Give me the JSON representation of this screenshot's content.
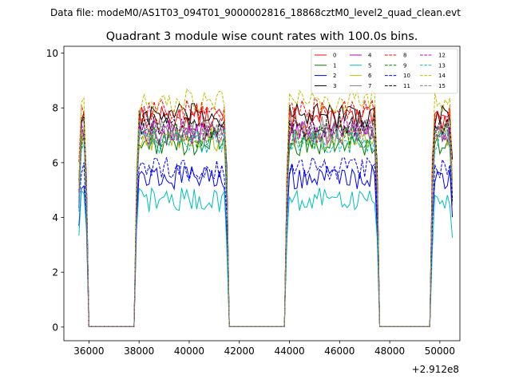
{
  "figure": {
    "suptitle": "Data file: modeM0/AS1T03_094T01_9000002816_18868cztM0_level2_quad_clean.evt"
  },
  "chart_data": {
    "type": "line",
    "title": "Quadrant 3 module wise count rates with 100.0s bins.",
    "xlabel": "",
    "ylabel": "",
    "x_offset_label": "+2.912e8",
    "xlim": [
      35000,
      50800
    ],
    "ylim": [
      -0.5,
      10.25
    ],
    "xticks": [
      36000,
      38000,
      40000,
      42000,
      44000,
      46000,
      48000,
      50000
    ],
    "yticks": [
      0,
      2,
      4,
      6,
      8,
      10
    ],
    "x_start": 35600,
    "x_end": 50500,
    "bin": 100,
    "segments": [
      {
        "start": 35600,
        "end": 35900
      },
      {
        "start": 37900,
        "end": 41500
      },
      {
        "start": 43900,
        "end": 47500
      },
      {
        "start": 49700,
        "end": 50500
      }
    ],
    "legend": {
      "location": "upper right",
      "columns": 4
    },
    "series": [
      {
        "name": "0",
        "color": "#ff0000",
        "dash": "solid",
        "level": 8.2
      },
      {
        "name": "1",
        "color": "#008000",
        "dash": "solid",
        "level": 7.2
      },
      {
        "name": "2",
        "color": "#0000ff",
        "dash": "solid",
        "level": 5.9
      },
      {
        "name": "3",
        "color": "#000000",
        "dash": "solid",
        "level": 8.3
      },
      {
        "name": "4",
        "color": "#bf00bf",
        "dash": "solid",
        "level": 7.6
      },
      {
        "name": "5",
        "color": "#00bfbf",
        "dash": "solid",
        "level": 5.0
      },
      {
        "name": "6",
        "color": "#bfbf00",
        "dash": "solid",
        "level": 7.4
      },
      {
        "name": "7",
        "color": "#808080",
        "dash": "solid",
        "level": 7.8
      },
      {
        "name": "8",
        "color": "#ff0000",
        "dash": "dashed",
        "level": 8.5
      },
      {
        "name": "9",
        "color": "#008000",
        "dash": "dashed",
        "level": 7.5
      },
      {
        "name": "10",
        "color": "#0000ff",
        "dash": "dashed",
        "level": 6.2
      },
      {
        "name": "11",
        "color": "#000000",
        "dash": "dashed",
        "level": 7.9
      },
      {
        "name": "12",
        "color": "#bf00bf",
        "dash": "dashed",
        "level": 7.7
      },
      {
        "name": "13",
        "color": "#00bfbf",
        "dash": "dashed",
        "level": 7.3
      },
      {
        "name": "14",
        "color": "#bfbf00",
        "dash": "dashed",
        "level": 8.9
      },
      {
        "name": "15",
        "color": "#808080",
        "dash": "dashed",
        "level": 7.6
      }
    ]
  }
}
